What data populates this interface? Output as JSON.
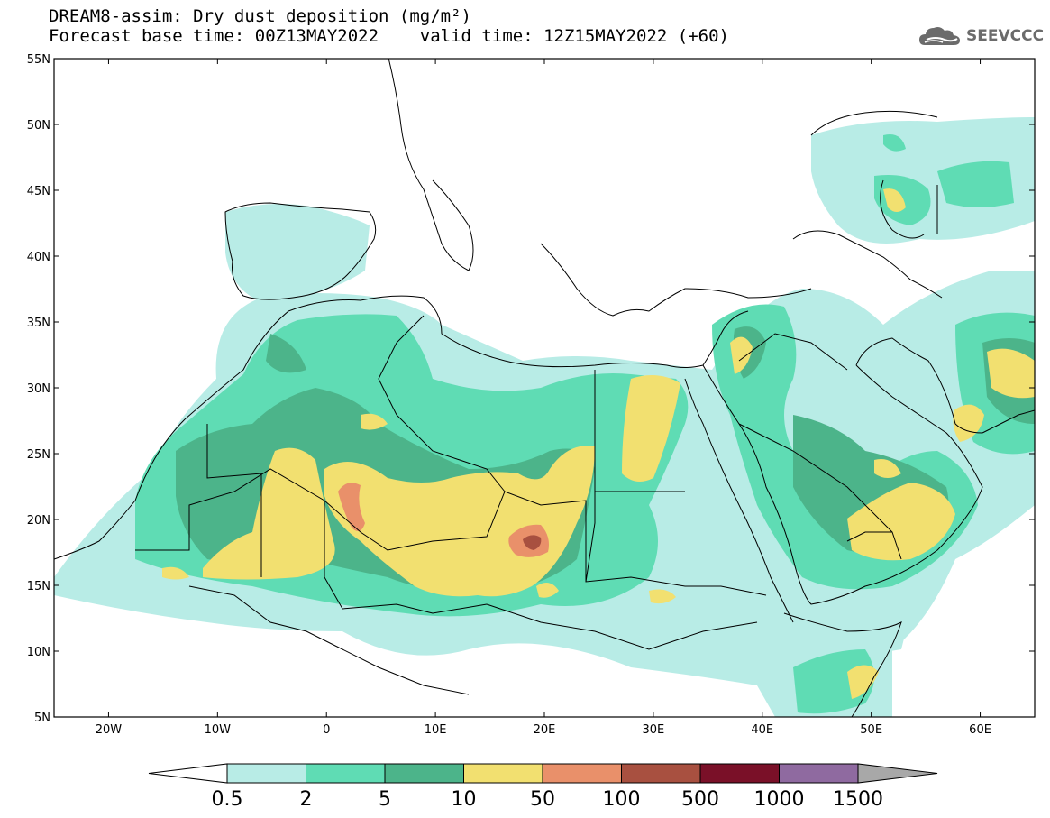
{
  "header": {
    "title_line1": "DREAM8-assim: Dry dust deposition (mg/m²)",
    "title_line2": "Forecast base time: 00Z13MAY2022    valid time: 12Z15MAY2022 (+60)",
    "logo_text": "SEEVCCC",
    "logo_icon": "cloud-icon"
  },
  "map": {
    "lat_labels": [
      "55N",
      "50N",
      "45N",
      "40N",
      "35N",
      "30N",
      "25N",
      "20N",
      "15N",
      "10N",
      "5N"
    ],
    "lon_labels": [
      "20W",
      "10W",
      "0",
      "10E",
      "20E",
      "30E",
      "40E",
      "50E",
      "60E"
    ],
    "lat_range": [
      5,
      55
    ],
    "lon_range": [
      -25,
      65
    ],
    "grid": false
  },
  "legend": {
    "labels": [
      "0.5",
      "2",
      "5",
      "10",
      "50",
      "100",
      "500",
      "1000",
      "1500"
    ],
    "colors": [
      "#ffffff",
      "#b8ece6",
      "#5fdcb4",
      "#4cb48a",
      "#f2e070",
      "#e9906a",
      "#a85040",
      "#7a1028",
      "#8f6aa0",
      "#a8a8a8"
    ]
  },
  "contour_colors": {
    "level1": "#b8ece6",
    "level2": "#5fdcb4",
    "level3": "#4cb48a",
    "level4": "#f2e070",
    "level5": "#e9906a",
    "level6": "#a85040"
  }
}
